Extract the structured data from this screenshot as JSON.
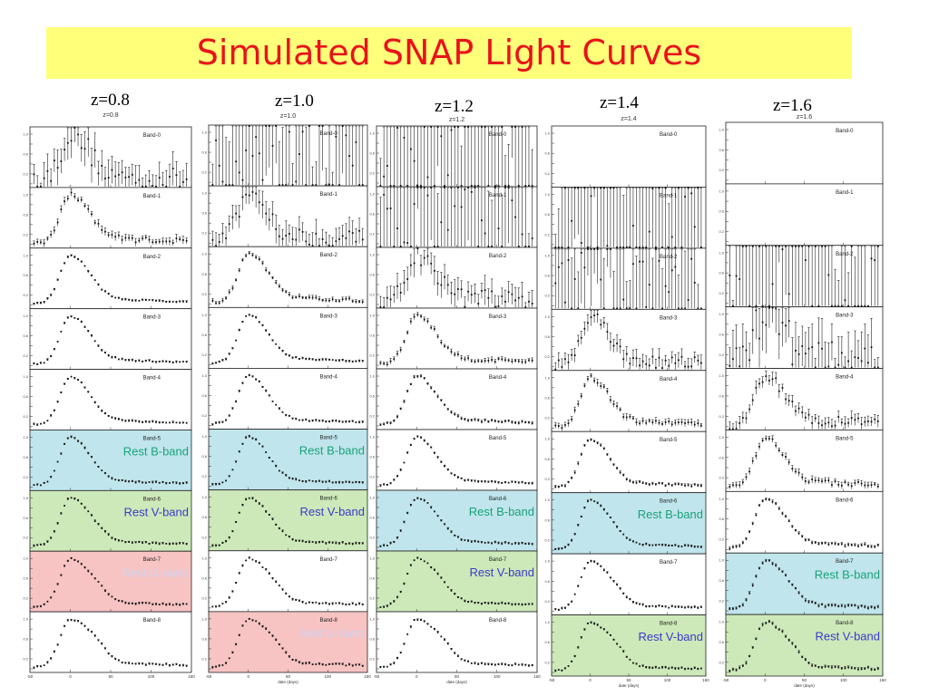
{
  "title": "Simulated SNAP Light Curves",
  "colors": {
    "title_bg": "#ffff7a",
    "title_text": "#e8131b",
    "rest_u": "#f7c3c3",
    "rest_b": "#c0e5ec",
    "rest_v": "#cde9b9",
    "label_b": "#1aa37a",
    "label_v": "#3a3acc",
    "label_u": "#cfd4f2"
  },
  "rest_band_labels": {
    "b": "Rest B-band",
    "v": "Rest V-band",
    "u": "Rest U-band"
  },
  "chart_data": [
    {
      "type": "scatter",
      "title": "z=0.8",
      "plot_title": "z=0.8",
      "xlabel": "",
      "xlim": [
        -50,
        150
      ],
      "x_ticks": [
        "-50",
        "0",
        "50",
        "100",
        "150"
      ],
      "y_ticks": [
        "0.0",
        "0.2",
        "0.4",
        "0.6",
        "0.8",
        "1.0"
      ],
      "panels": [
        {
          "name": "Band-0",
          "noise": 0.3,
          "rest": ""
        },
        {
          "name": "Band-1",
          "noise": 0.07,
          "rest": ""
        },
        {
          "name": "Band-2",
          "noise": 0.02,
          "rest": ""
        },
        {
          "name": "Band-3",
          "noise": 0.02,
          "rest": ""
        },
        {
          "name": "Band-4",
          "noise": 0.02,
          "rest": ""
        },
        {
          "name": "Band-5",
          "noise": 0.02,
          "rest": "b"
        },
        {
          "name": "Band-6",
          "noise": 0.02,
          "rest": "v"
        },
        {
          "name": "Band-7",
          "noise": 0.02,
          "rest": "u"
        },
        {
          "name": "Band-8",
          "noise": 0.02,
          "rest": ""
        }
      ]
    },
    {
      "type": "scatter",
      "title": "z=1.0",
      "plot_title": "z=1.0",
      "xlabel": "date (days)",
      "xlim": [
        -50,
        150
      ],
      "x_ticks": [
        "-50",
        "0",
        "50",
        "100",
        "150"
      ],
      "y_ticks": [
        "0.0",
        "0.2",
        "0.4",
        "0.6",
        "0.8",
        "1.0"
      ],
      "panels": [
        {
          "name": "Band-0",
          "noise": 2.0,
          "rest": ""
        },
        {
          "name": "Band-1",
          "noise": 0.25,
          "rest": ""
        },
        {
          "name": "Band-2",
          "noise": 0.04,
          "rest": ""
        },
        {
          "name": "Band-3",
          "noise": 0.02,
          "rest": ""
        },
        {
          "name": "Band-4",
          "noise": 0.02,
          "rest": ""
        },
        {
          "name": "Band-5",
          "noise": 0.02,
          "rest": "b"
        },
        {
          "name": "Band-6",
          "noise": 0.02,
          "rest": "v"
        },
        {
          "name": "Band-7",
          "noise": 0.02,
          "rest": ""
        },
        {
          "name": "Band-8",
          "noise": 0.02,
          "rest": "u"
        }
      ]
    },
    {
      "type": "scatter",
      "title": "z=1.2",
      "plot_title": "z=1.2",
      "xlabel": "date (days)",
      "xlim": [
        -50,
        150
      ],
      "x_ticks": [
        "-50",
        "0",
        "50",
        "100",
        "150"
      ],
      "y_ticks": [
        "0.0",
        "0.2",
        "0.4",
        "0.6",
        "0.8",
        "1.0"
      ],
      "panels": [
        {
          "name": "Band-0",
          "noise": 3.0,
          "rest": ""
        },
        {
          "name": "Band-1",
          "noise": 2.0,
          "rest": ""
        },
        {
          "name": "Band-2",
          "noise": 0.25,
          "rest": ""
        },
        {
          "name": "Band-3",
          "noise": 0.05,
          "rest": ""
        },
        {
          "name": "Band-4",
          "noise": 0.03,
          "rest": ""
        },
        {
          "name": "Band-5",
          "noise": 0.02,
          "rest": ""
        },
        {
          "name": "Band-6",
          "noise": 0.02,
          "rest": "b"
        },
        {
          "name": "Band-7",
          "noise": 0.02,
          "rest": "v"
        },
        {
          "name": "Band-8",
          "noise": 0.02,
          "rest": ""
        }
      ]
    },
    {
      "type": "scatter",
      "title": "z=1.4",
      "plot_title": "z=1.4",
      "xlabel": "date (days)",
      "xlim": [
        -50,
        150
      ],
      "x_ticks": [
        "-50",
        "0",
        "50",
        "100",
        "150"
      ],
      "y_ticks": [
        "0.0",
        "0.2",
        "0.4",
        "0.6",
        "0.8",
        "1.0"
      ],
      "panels": [
        {
          "name": "Band-0",
          "noise": 0,
          "rest": ""
        },
        {
          "name": "Band-1",
          "noise": 3.0,
          "rest": ""
        },
        {
          "name": "Band-2",
          "noise": 1.5,
          "rest": ""
        },
        {
          "name": "Band-3",
          "noise": 0.15,
          "rest": ""
        },
        {
          "name": "Band-4",
          "noise": 0.06,
          "rest": ""
        },
        {
          "name": "Band-5",
          "noise": 0.03,
          "rest": ""
        },
        {
          "name": "Band-6",
          "noise": 0.02,
          "rest": "b"
        },
        {
          "name": "Band-7",
          "noise": 0.02,
          "rest": ""
        },
        {
          "name": "Band-8",
          "noise": 0.02,
          "rest": "v"
        }
      ]
    },
    {
      "type": "scatter",
      "title": "z=1.6",
      "plot_title": "z=1.6",
      "xlabel": "date (days)",
      "xlim": [
        -50,
        150
      ],
      "x_ticks": [
        "-50",
        "0",
        "50",
        "100",
        "150"
      ],
      "y_ticks": [
        "0.0",
        "0.2",
        "0.4",
        "0.6",
        "0.8",
        "1.0"
      ],
      "panels": [
        {
          "name": "Band-0",
          "noise": 0,
          "rest": ""
        },
        {
          "name": "Band-1",
          "noise": 0,
          "rest": ""
        },
        {
          "name": "Band-2",
          "noise": 3.0,
          "rest": ""
        },
        {
          "name": "Band-3",
          "noise": 0.5,
          "rest": ""
        },
        {
          "name": "Band-4",
          "noise": 0.12,
          "rest": ""
        },
        {
          "name": "Band-5",
          "noise": 0.06,
          "rest": ""
        },
        {
          "name": "Band-6",
          "noise": 0.03,
          "rest": ""
        },
        {
          "name": "Band-7",
          "noise": 0.03,
          "rest": "b"
        },
        {
          "name": "Band-8",
          "noise": 0.03,
          "rest": "v"
        }
      ]
    }
  ]
}
